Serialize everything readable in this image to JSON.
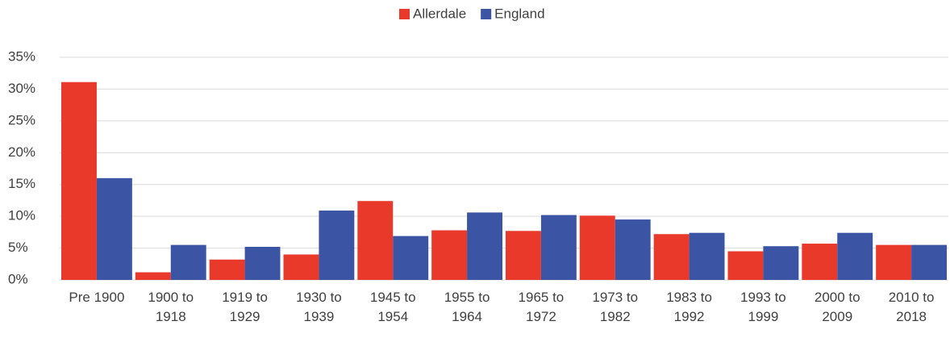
{
  "chart_data": {
    "type": "bar",
    "categories": [
      "Pre 1900",
      "1900 to 1918",
      "1919 to 1929",
      "1930 to 1939",
      "1945 to 1954",
      "1955 to 1964",
      "1965 to 1972",
      "1973 to 1982",
      "1983 to 1992",
      "1993 to 1999",
      "2000 to 2009",
      "2010 to 2018"
    ],
    "series": [
      {
        "name": "Allerdale",
        "color": "#e8392a",
        "values": [
          31.1,
          1.2,
          3.2,
          4.0,
          12.4,
          7.8,
          7.7,
          10.1,
          7.2,
          4.5,
          5.7,
          5.5
        ]
      },
      {
        "name": "England",
        "color": "#3b54a4",
        "values": [
          16.0,
          5.5,
          5.2,
          10.9,
          6.9,
          10.6,
          10.2,
          9.5,
          7.4,
          5.3,
          7.4,
          5.5
        ]
      }
    ],
    "ylim": [
      0,
      35
    ],
    "yticks": [
      {
        "value": 0,
        "label": "0%"
      },
      {
        "value": 5,
        "label": "5%"
      },
      {
        "value": 10,
        "label": "10%"
      },
      {
        "value": 15,
        "label": "15%"
      },
      {
        "value": 20,
        "label": "20%"
      },
      {
        "value": 25,
        "label": "25%"
      },
      {
        "value": 30,
        "label": "30%"
      },
      {
        "value": 35,
        "label": "35%"
      }
    ],
    "grid": true,
    "legend": "top"
  }
}
